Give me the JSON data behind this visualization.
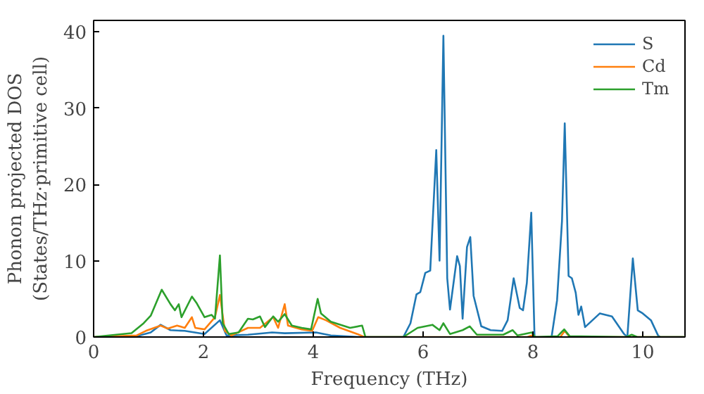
{
  "chart_data": {
    "type": "line",
    "xlabel": "Frequency (THz)",
    "ylabel": "Phonon projected DOS\n(States/THz·primitive cell)",
    "xlim": [
      0,
      10.77
    ],
    "ylim": [
      0,
      41.5
    ],
    "xticks": [
      0,
      2,
      4,
      6,
      8,
      10
    ],
    "yticks": [
      0,
      10,
      20,
      30,
      40
    ],
    "grid": false,
    "legend": "top right",
    "marker": "none",
    "line_style": "solid",
    "series": [
      {
        "name": "S",
        "color": "#1f77b4",
        "x": [
          0,
          0.78,
          1.04,
          1.22,
          1.4,
          1.66,
          2.02,
          2.3,
          2.42,
          2.81,
          3.25,
          3.48,
          4.05,
          4.32,
          4.85,
          5.64,
          5.77,
          5.88,
          5.95,
          6.04,
          6.13,
          6.24,
          6.3,
          6.37,
          6.44,
          6.49,
          6.62,
          6.67,
          6.72,
          6.8,
          6.86,
          6.92,
          7.06,
          7.23,
          7.44,
          7.54,
          7.65,
          7.76,
          7.82,
          7.89,
          7.97,
          8.03,
          8.34,
          8.44,
          8.53,
          8.58,
          8.65,
          8.71,
          8.78,
          8.83,
          8.88,
          8.95,
          9.22,
          9.44,
          9.66,
          9.72,
          9.82,
          9.91,
          10.0,
          10.15,
          10.28,
          10.32,
          10.77
        ],
        "values": [
          0,
          0.1,
          0.6,
          1.6,
          0.9,
          0.8,
          0.4,
          2.2,
          0.2,
          0.3,
          0.6,
          0.5,
          0.6,
          0.2,
          0,
          0,
          1.8,
          5.6,
          5.9,
          8.4,
          8.7,
          24.5,
          10,
          39.5,
          7.7,
          3.6,
          10.6,
          9.3,
          2.4,
          11.8,
          13.1,
          5.4,
          1.4,
          0.9,
          0.8,
          2.2,
          7.7,
          3.8,
          3.5,
          7.1,
          16.3,
          0,
          0,
          4.8,
          15.2,
          28,
          8.0,
          7.7,
          5.8,
          2.9,
          4.0,
          1.3,
          3.1,
          2.7,
          0.4,
          0,
          10.3,
          3.5,
          3.1,
          2.2,
          0.2,
          0,
          0
        ]
      },
      {
        "name": "Cd",
        "color": "#ff7f0e",
        "x": [
          0,
          0.78,
          0.95,
          1.22,
          1.35,
          1.52,
          1.66,
          1.79,
          1.85,
          2.02,
          2.21,
          2.3,
          2.39,
          2.51,
          2.81,
          3.03,
          3.27,
          3.36,
          3.48,
          3.54,
          3.79,
          3.98,
          4.09,
          4.23,
          4.49,
          4.8,
          4.93,
          7.9,
          7.98,
          8.04,
          8.5,
          8.58,
          8.67,
          10.77
        ],
        "values": [
          0,
          0.2,
          0.8,
          1.5,
          1.1,
          1.5,
          1.2,
          2.6,
          1.2,
          1.0,
          2.6,
          5.5,
          0.8,
          0.2,
          1.2,
          1.2,
          2.6,
          1.2,
          4.3,
          1.5,
          1.0,
          0.8,
          2.6,
          2.2,
          1.2,
          0.4,
          0,
          0,
          0.2,
          0,
          0,
          0.8,
          0,
          0
        ]
      },
      {
        "name": "Tm",
        "color": "#2ca02c",
        "x": [
          0,
          0.69,
          0.91,
          1.04,
          1.24,
          1.4,
          1.48,
          1.55,
          1.6,
          1.79,
          1.88,
          2.02,
          2.15,
          2.21,
          2.3,
          2.35,
          2.46,
          2.64,
          2.81,
          2.9,
          3.03,
          3.12,
          3.27,
          3.36,
          3.48,
          3.61,
          3.79,
          3.96,
          4.08,
          4.14,
          4.32,
          4.67,
          4.89,
          4.95,
          5.64,
          5.9,
          6.17,
          6.3,
          6.37,
          6.49,
          6.72,
          6.85,
          6.98,
          7.46,
          7.63,
          7.72,
          7.98,
          8.04,
          8.45,
          8.57,
          8.67,
          9.7,
          9.8,
          9.9,
          10.77
        ],
        "values": [
          0,
          0.5,
          1.8,
          2.8,
          6.2,
          4.3,
          3.5,
          4.3,
          2.6,
          5.3,
          4.4,
          2.6,
          2.9,
          2.4,
          10.7,
          1.8,
          0.4,
          0.6,
          2.4,
          2.3,
          2.7,
          1.3,
          2.7,
          2.0,
          3.0,
          1.5,
          1.2,
          1.0,
          5.0,
          3.1,
          2.0,
          1.2,
          1.5,
          0,
          0,
          1.2,
          1.6,
          0.9,
          1.8,
          0.4,
          0.9,
          1.4,
          0.3,
          0.3,
          0.9,
          0.2,
          0.6,
          0,
          0.1,
          1.0,
          0.1,
          0,
          0.3,
          0,
          0
        ]
      }
    ]
  }
}
